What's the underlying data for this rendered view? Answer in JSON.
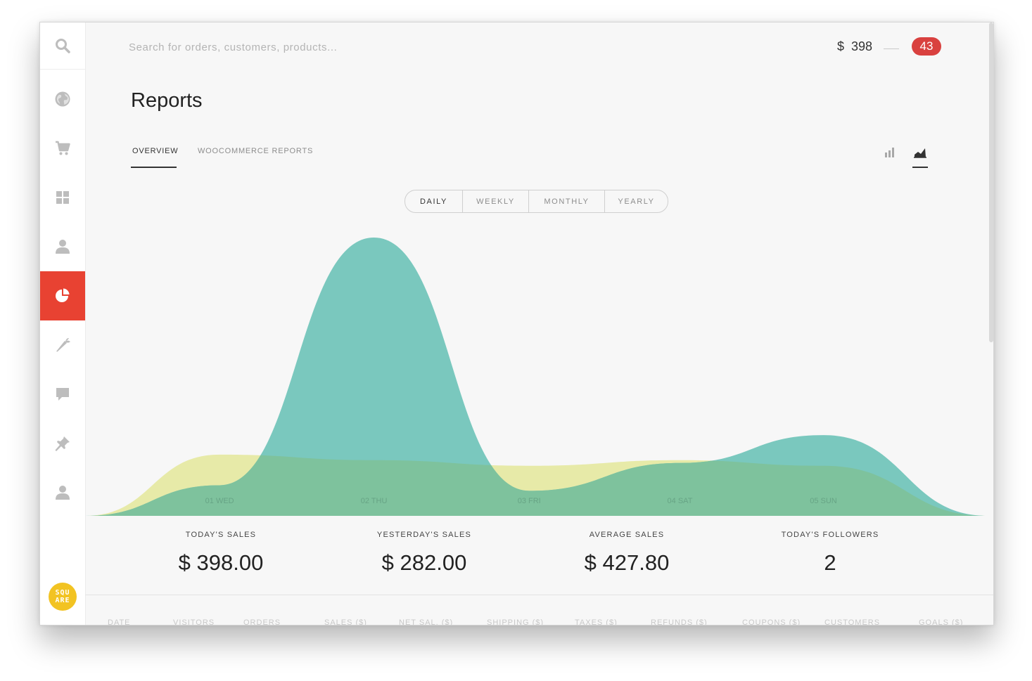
{
  "search": {
    "placeholder": "Search for orders, customers, products..."
  },
  "header": {
    "balance": "$  398",
    "notification_count": "43"
  },
  "page": {
    "title": "Reports"
  },
  "tabs": [
    {
      "label": "OVERVIEW",
      "active": true
    },
    {
      "label": "WOOCOMMERCE REPORTS",
      "active": false
    }
  ],
  "view_toggle": {
    "options": [
      "bar-chart-icon",
      "area-chart-icon"
    ],
    "active": "area-chart-icon"
  },
  "periods": [
    {
      "label": "DAILY",
      "active": true
    },
    {
      "label": "WEEKLY",
      "active": false
    },
    {
      "label": "MONTHLY",
      "active": false
    },
    {
      "label": "YEARLY",
      "active": false
    }
  ],
  "sidebar": {
    "items": [
      {
        "icon": "search-icon"
      },
      {
        "icon": "globe-icon"
      },
      {
        "icon": "cart-icon"
      },
      {
        "icon": "grid-icon"
      },
      {
        "icon": "user-icon"
      },
      {
        "icon": "pie-chart-icon",
        "active": true
      },
      {
        "icon": "carrot-icon"
      },
      {
        "icon": "comment-icon"
      },
      {
        "icon": "pin-icon"
      },
      {
        "icon": "users-icon"
      }
    ],
    "logo_text": [
      "SQU",
      "ARE"
    ]
  },
  "chart_data": {
    "type": "area",
    "x": [
      "01 WED",
      "02 THU",
      "03 FRI",
      "04 SAT",
      "05 SUN"
    ],
    "series": [
      {
        "color": "#e7eaa8",
        "values": [
          22,
          20,
          18,
          20,
          18
        ]
      },
      {
        "color": "#7ac8be",
        "values": [
          11,
          100,
          9,
          19,
          29
        ]
      }
    ],
    "colors": {
      "overlap": "#7ec29d"
    }
  },
  "stats": [
    {
      "label": "TODAY'S SALES",
      "value": "$ 398.00"
    },
    {
      "label": "YESTERDAY'S SALES",
      "value": "$ 282.00"
    },
    {
      "label": "AVERAGE SALES",
      "value": "$ 427.80"
    },
    {
      "label": "TODAY'S FOLLOWERS",
      "value": "2"
    }
  ],
  "table": {
    "columns": [
      "DATE",
      "VISITORS",
      "ORDERS",
      "SALES ($)",
      "NET SAL. ($)",
      "SHIPPING ($)",
      "TAXES ($)",
      "REFUNDS ($)",
      "COUPONS ($)",
      "CUSTOMERS",
      "GOALS ($)"
    ]
  }
}
